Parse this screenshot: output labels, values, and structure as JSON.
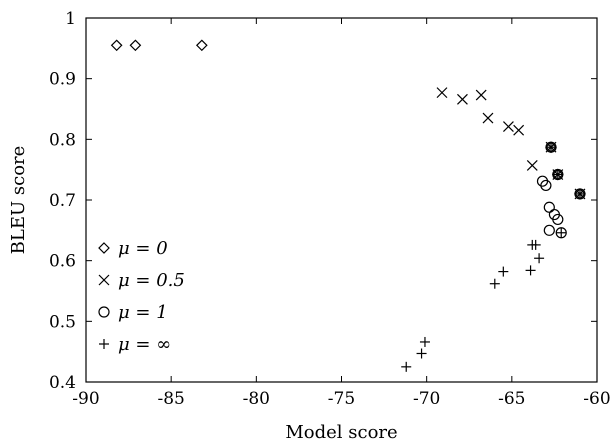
{
  "chart_data": {
    "type": "scatter",
    "xlabel": "Model score",
    "ylabel": "BLEU score",
    "xlim": [
      -90,
      -60
    ],
    "ylim": [
      0.4,
      1.0
    ],
    "xticks": [
      "-90",
      "-85",
      "-80",
      "-75",
      "-70",
      "-65",
      "-60"
    ],
    "yticks": [
      "0.4",
      "0.5",
      "0.6",
      "0.7",
      "0.8",
      "0.9",
      "1"
    ],
    "legend_position": "lower-left",
    "series": [
      {
        "name": "μ = 0",
        "marker": "diamond",
        "points": [
          [
            -88.2,
            0.955
          ],
          [
            -87.1,
            0.955
          ],
          [
            -83.2,
            0.955
          ],
          [
            -62.7,
            0.787
          ],
          [
            -62.3,
            0.742
          ],
          [
            -61.0,
            0.71
          ]
        ]
      },
      {
        "name": "μ = 0.5",
        "marker": "cross",
        "points": [
          [
            -69.1,
            0.877
          ],
          [
            -67.9,
            0.866
          ],
          [
            -66.8,
            0.873
          ],
          [
            -66.4,
            0.835
          ],
          [
            -65.2,
            0.821
          ],
          [
            -64.6,
            0.815
          ],
          [
            -63.8,
            0.757
          ],
          [
            -62.7,
            0.787
          ],
          [
            -62.3,
            0.742
          ],
          [
            -61.0,
            0.71
          ]
        ]
      },
      {
        "name": "μ = 1",
        "marker": "circle",
        "points": [
          [
            -63.2,
            0.731
          ],
          [
            -63.0,
            0.724
          ],
          [
            -62.8,
            0.688
          ],
          [
            -62.5,
            0.676
          ],
          [
            -62.3,
            0.668
          ],
          [
            -62.8,
            0.65
          ],
          [
            -62.1,
            0.646
          ],
          [
            -62.7,
            0.787
          ],
          [
            -62.3,
            0.742
          ],
          [
            -61.0,
            0.71
          ]
        ]
      },
      {
        "name": "μ = ∞",
        "marker": "plus",
        "points": [
          [
            -71.2,
            0.425
          ],
          [
            -70.3,
            0.447
          ],
          [
            -70.1,
            0.466
          ],
          [
            -66.0,
            0.562
          ],
          [
            -65.5,
            0.582
          ],
          [
            -63.9,
            0.584
          ],
          [
            -63.4,
            0.604
          ],
          [
            -63.8,
            0.626
          ],
          [
            -63.6,
            0.626
          ],
          [
            -62.1,
            0.646
          ],
          [
            -62.7,
            0.787
          ],
          [
            -62.3,
            0.742
          ],
          [
            -61.0,
            0.71
          ]
        ]
      }
    ]
  }
}
